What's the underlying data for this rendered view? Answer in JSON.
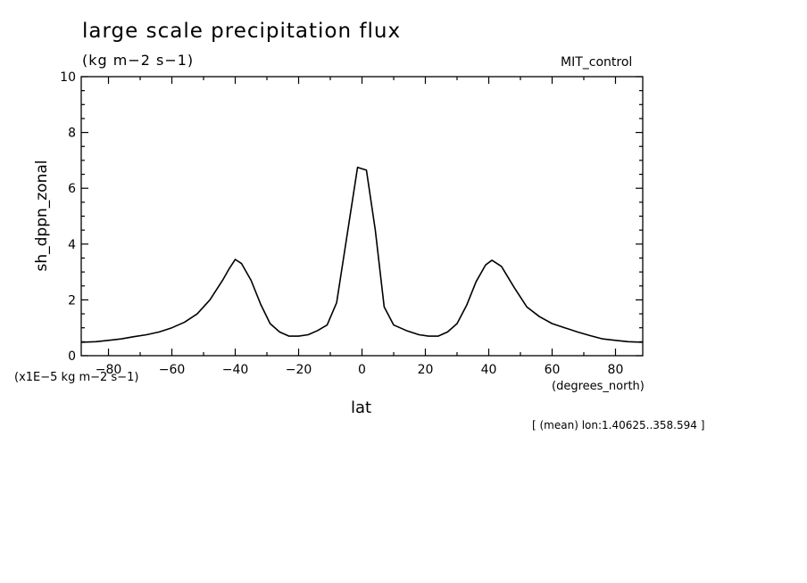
{
  "chart_data": {
    "type": "line",
    "title": "large scale precipitation flux",
    "units": "(kg m−2 s−1)",
    "label_right": "MIT_control",
    "ylabel": "sh_dppn_zonal",
    "xlabel": "lat",
    "x_unit": "(degrees_north)",
    "scale_note": "(x1E−5 kg m−2 s−1)",
    "mean_note": "[ (mean) lon:1.40625..358.594 ]",
    "xlim": [
      -88.6,
      88.6
    ],
    "ylim": [
      0,
      10
    ],
    "x_ticks": [
      -80,
      -60,
      -40,
      -20,
      0,
      20,
      40,
      60,
      80
    ],
    "x_tick_labels": [
      "−80",
      "−60",
      "−40",
      "−20",
      "0",
      "20",
      "40",
      "60",
      "80"
    ],
    "y_ticks": [
      0,
      2,
      4,
      6,
      8,
      10
    ],
    "y_tick_labels": [
      "0",
      "2",
      "4",
      "6",
      "8",
      "10"
    ],
    "grid": false,
    "series": [
      {
        "x": [
          -88.6,
          -84,
          -80,
          -76,
          -72,
          -68,
          -64,
          -60,
          -56,
          -52,
          -48,
          -44,
          -42,
          -40,
          -38,
          -35,
          -32,
          -29,
          -26,
          -23,
          -20,
          -17,
          -14,
          -11,
          -8,
          -5,
          -1.4,
          1.4,
          4.2,
          7,
          10,
          14,
          18,
          21,
          24,
          27,
          30,
          33,
          36,
          39,
          41,
          44,
          48,
          52,
          56,
          60,
          64,
          68,
          72,
          76,
          80,
          84,
          88.6
        ],
        "y": [
          0.48,
          0.5,
          0.55,
          0.6,
          0.68,
          0.75,
          0.85,
          1.0,
          1.2,
          1.5,
          2.0,
          2.7,
          3.1,
          3.45,
          3.3,
          2.7,
          1.85,
          1.15,
          0.85,
          0.7,
          0.7,
          0.75,
          0.9,
          1.1,
          1.9,
          4.1,
          6.75,
          6.65,
          4.5,
          1.75,
          1.1,
          0.9,
          0.75,
          0.7,
          0.7,
          0.85,
          1.15,
          1.8,
          2.65,
          3.25,
          3.42,
          3.2,
          2.45,
          1.75,
          1.4,
          1.15,
          1.0,
          0.85,
          0.72,
          0.6,
          0.55,
          0.5,
          0.48
        ]
      }
    ]
  }
}
